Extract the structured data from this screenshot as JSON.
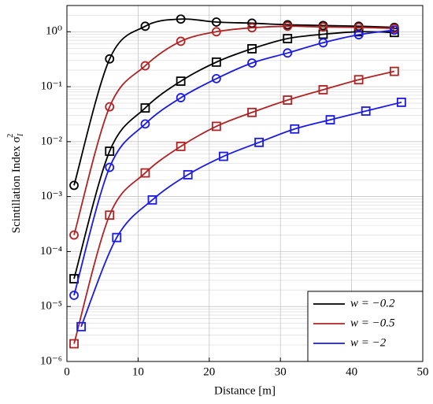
{
  "chart_data": {
    "type": "line",
    "log_y": true,
    "grid": true,
    "legend_position": "lower right",
    "xlabel": "Distance [m]",
    "ylabel": "Scintillation Index σ",
    "ylabel_sub": "I",
    "ylabel_sup": "2",
    "xlim": [
      0,
      50
    ],
    "xticks": [
      0,
      10,
      20,
      30,
      40,
      50
    ],
    "ylim": [
      1e-06,
      3
    ],
    "yticks": [
      {
        "value": 1e-06,
        "label": "10⁻⁶"
      },
      {
        "value": 1e-05,
        "label": "10⁻⁵"
      },
      {
        "value": 0.0001,
        "label": "10⁻⁴"
      },
      {
        "value": 0.001,
        "label": "10⁻³"
      },
      {
        "value": 0.01,
        "label": "10⁻²"
      },
      {
        "value": 0.1,
        "label": "10⁻¹"
      },
      {
        "value": 1,
        "label": "10⁰"
      }
    ],
    "legend": [
      {
        "name": "w = −0.2",
        "color": "#000000"
      },
      {
        "name": "w = −0.5",
        "color": "#b22222"
      },
      {
        "name": "w = −2",
        "color": "#1a1ae6"
      }
    ],
    "series": [
      {
        "color": "#000000",
        "marker": "circle",
        "x": [
          1,
          6,
          11,
          16,
          21,
          26,
          31,
          36,
          41,
          46
        ],
        "values": [
          0.0016,
          0.32,
          1.26,
          1.7,
          1.5,
          1.43,
          1.34,
          1.3,
          1.26,
          1.2
        ]
      },
      {
        "color": "#000000",
        "marker": "square",
        "x": [
          1,
          6,
          11,
          16,
          21,
          26,
          31,
          36,
          41,
          46
        ],
        "values": [
          3.2e-05,
          0.0067,
          0.041,
          0.126,
          0.28,
          0.49,
          0.75,
          0.9,
          1.0,
          0.97
        ]
      },
      {
        "color": "#b22222",
        "marker": "circle",
        "x": [
          1,
          6,
          11,
          16,
          21,
          26,
          31,
          36,
          41,
          46
        ],
        "values": [
          0.0002,
          0.043,
          0.24,
          0.67,
          1.0,
          1.18,
          1.26,
          1.22,
          1.2,
          1.15
        ]
      },
      {
        "color": "#b22222",
        "marker": "square",
        "x": [
          1,
          6,
          11,
          16,
          21,
          26,
          31,
          36,
          41,
          46
        ],
        "values": [
          2.1e-06,
          0.00046,
          0.0027,
          0.0082,
          0.019,
          0.034,
          0.057,
          0.088,
          0.134,
          0.19
        ]
      },
      {
        "color": "#1a1ae6",
        "marker": "circle",
        "x": [
          1,
          6,
          11,
          16,
          21,
          26,
          31,
          36,
          41,
          46
        ],
        "values": [
          1.6e-05,
          0.0034,
          0.021,
          0.063,
          0.14,
          0.27,
          0.41,
          0.63,
          0.88,
          1.07
        ]
      },
      {
        "color": "#1a1ae6",
        "marker": "square",
        "x": [
          2,
          7,
          12,
          17,
          22,
          27,
          32,
          37,
          42,
          47
        ],
        "values": [
          4.3e-06,
          0.00018,
          0.00087,
          0.0025,
          0.0054,
          0.0097,
          0.017,
          0.025,
          0.036,
          0.052
        ]
      }
    ]
  }
}
